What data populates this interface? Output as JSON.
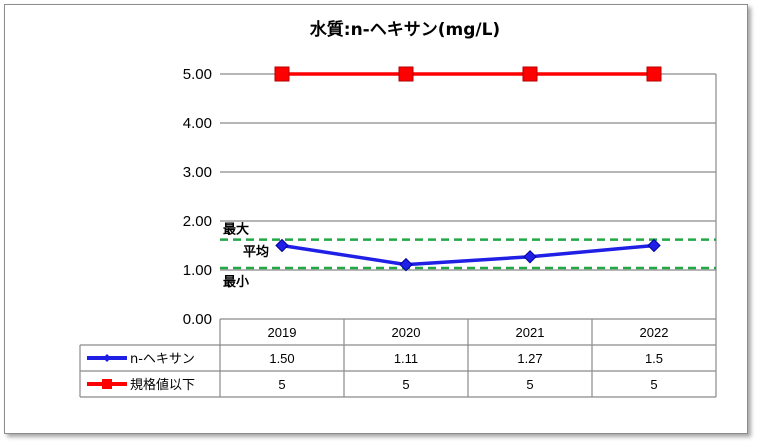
{
  "chart_data": {
    "type": "line",
    "title": "水質:n-ヘキサン(mg/L)",
    "categories": [
      "2019",
      "2020",
      "2021",
      "2022"
    ],
    "ylim": [
      0,
      5
    ],
    "yticks": [
      "0.00",
      "1.00",
      "2.00",
      "3.00",
      "4.00",
      "5.00"
    ],
    "grid": true,
    "legend": "table-bottom",
    "series": [
      {
        "name": "n-ヘキサン",
        "values": [
          1.5,
          1.11,
          1.27,
          1.5
        ],
        "labels": [
          "1.50",
          "1.11",
          "1.27",
          "1.5"
        ],
        "color": "#1f1fe6",
        "marker": "diamond"
      },
      {
        "name": "規格値以下",
        "values": [
          5,
          5,
          5,
          5
        ],
        "labels": [
          "5",
          "5",
          "5",
          "5"
        ],
        "color": "#ff0000",
        "marker": "square"
      }
    ],
    "reference_lines": [
      {
        "label": "最大",
        "value": 1.62,
        "color": "#22a845",
        "style": "dashed"
      },
      {
        "label": "最小",
        "value": 1.04,
        "color": "#22a845",
        "style": "dashed"
      }
    ],
    "annotations": [
      {
        "text": "平均"
      }
    ]
  }
}
